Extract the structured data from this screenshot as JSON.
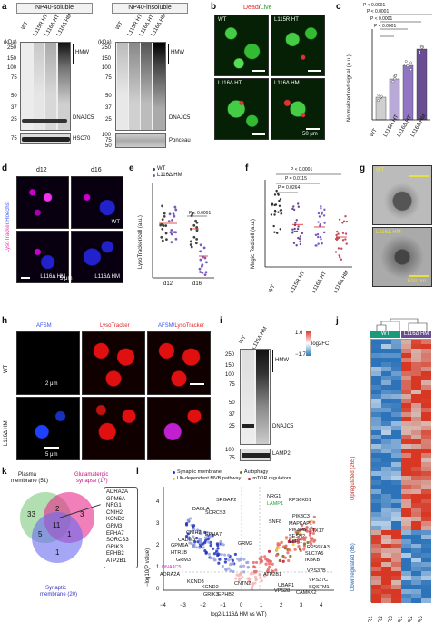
{
  "panels": {
    "a": "a",
    "b": "b",
    "c": "c",
    "d": "d",
    "e": "e",
    "f": "f",
    "g": "g",
    "h": "h",
    "i": "i",
    "j": "j",
    "k": "k",
    "l": "l"
  },
  "panel_a": {
    "soluble_header": "NP40-soluble",
    "insoluble_header": "NP40-insoluble",
    "lanes": [
      "WT",
      "L115R HT",
      "L116Δ HT",
      "L116Δ HM"
    ],
    "kda_label": "(kDa)",
    "markers_left": [
      "250",
      "150",
      "100",
      "75",
      "50",
      "37",
      "25",
      "75"
    ],
    "markers_right": [
      "250",
      "150",
      "100",
      "75",
      "50",
      "37",
      "25",
      "100",
      "75",
      "50"
    ],
    "hmw": "HMW",
    "dnajc5": "DNAJC5",
    "hsc70": "HSC70",
    "ponceau": "Ponceau"
  },
  "panel_b": {
    "title_dead": "Dead",
    "title_sep": "/",
    "title_live": "Live",
    "tiles": [
      "WT",
      "L115R HT",
      "L116Δ HT",
      "L116Δ HM"
    ],
    "scale": "50 μm"
  },
  "panel_c": {
    "ylabel": "Normalized red signal (a.u.)",
    "pvals": [
      "P < 0.0001",
      "P < 0.0001",
      "P < 0.0001",
      "P < 0.0001"
    ]
  },
  "panel_d": {
    "col_labels": [
      "d12",
      "d16"
    ],
    "side_label_a": "LysoTracker",
    "side_label_b": "/Hoechst",
    "tile_labels": [
      "WT",
      "WT",
      "L116Δ HM",
      "L116Δ HM"
    ],
    "scale": "5 μm"
  },
  "panel_e": {
    "legend": [
      "WT",
      "L116Δ HM"
    ],
    "ylabel": "LysoTracker/cell (a.u.)",
    "pval": "P < 0.0001",
    "x": [
      "d12",
      "d16"
    ]
  },
  "panel_f": {
    "ylabel": "Magic Red/cell (a.u.)",
    "pvals": [
      "P < 0.0001",
      "P = 0.0115",
      "P = 0.0264"
    ],
    "x": [
      "WT",
      "L115R HT",
      "L116Δ HT",
      "L116Δ HM"
    ]
  },
  "panel_g": {
    "labels": [
      "WT",
      "L116Δ HM"
    ],
    "scale": "500 nm"
  },
  "panel_h": {
    "cols": [
      "AFSM",
      "LysoTracker",
      "AFSM/",
      "LysoTracker"
    ],
    "rows": [
      "WT",
      "L116Δ HM"
    ],
    "scale1": "2 μm",
    "scale2": "5 μm"
  },
  "panel_i": {
    "lanes": [
      "WT",
      "L116Δ HM"
    ],
    "markers": [
      "250",
      "150",
      "100",
      "75",
      "50",
      "37",
      "25",
      "100",
      "75"
    ],
    "hmw": "HMW",
    "dnajc5": "DNAJC5",
    "lamp2": "LAMP2"
  },
  "panel_j": {
    "groups": [
      "WT",
      "L116Δ HM"
    ],
    "up": "Upregulated (265)",
    "down": "Downregulated (86)",
    "cols": [
      "R1",
      "R2",
      "R3",
      "R1",
      "R2",
      "R3"
    ],
    "legend_title": "log2FC",
    "legend_max": "1.6",
    "legend_min": "−1.7"
  },
  "panel_k": {
    "set_plasma": "Plasma",
    "set_plasma2": "membrane (51)",
    "set_glut": "Glutamatergic",
    "set_glut2": "synapse (17)",
    "set_syn": "Synaptic",
    "set_syn2": "membrane (20)",
    "counts": [
      "33",
      "2",
      "3",
      "11",
      "5",
      "1",
      "1"
    ],
    "genes": [
      "ADRA2A",
      "GPM6A",
      "NRG1",
      "CNIH2",
      "KCND2",
      "GRM3",
      "EPHA7",
      "SORCS3",
      "GRIK3",
      "EPHB2",
      "ATP2B1"
    ]
  },
  "panel_l": {
    "legend": [
      "Synaptic membrane",
      "Autophagy",
      "Ub-dependent MVB pathway",
      "mTOR regulators"
    ],
    "xlabel": "log2(L116Δ HM vs WT)",
    "ylabel": "−log10(P value)",
    "xticks": [
      "−4",
      "−3",
      "−2",
      "−1",
      "0",
      "1",
      "2",
      "3",
      "4"
    ],
    "yticks": [
      "0",
      "1",
      "2",
      "3",
      "4"
    ],
    "genes_left": [
      "DAGLA",
      "SRGAP2",
      "SORCS3",
      "CNIH2",
      "CADM3",
      "EPHA7",
      "GPM6A",
      "HTR1B",
      "GRM3",
      "DNAJC5",
      "ADRA2A",
      "KCND3",
      "KCND2",
      "GRIK3",
      "EPHB2",
      "CNTN2",
      "GRM2"
    ],
    "genes_right": [
      "NRG1",
      "LAMP1",
      "RPS6KB1",
      "PIK3C3",
      "SNF8",
      "MAPKAP1",
      "PIK3R3",
      "SESN2",
      "WIPI1",
      "STX17",
      "RPS6KA3",
      "SLC7A5",
      "IKBKB",
      "VPS37B",
      "ATP2B1",
      "UBAP1",
      "VPS28",
      "CAMKK2",
      "VPS37C",
      "SQSTM1"
    ]
  },
  "colors": {
    "wt_bar": "#c8c0d8",
    "hm_bar": "#6a4c93",
    "dot_wt": "#444444",
    "dot_hm": "#7a5cc0",
    "heat_red": "#d7301f",
    "heat_blue": "#2c7bb6",
    "venn_green": "#7fc97f",
    "venn_pink": "#e7298a",
    "venn_blue": "#6a6af0"
  },
  "chart_data": [
    {
      "type": "bar",
      "panel": "c",
      "categories": [
        "WT",
        "L115R HT",
        "L116Δ HT",
        "L116Δ HM"
      ],
      "values": [
        25,
        45,
        60,
        78
      ],
      "ylim": [
        0,
        100
      ],
      "ylabel": "Normalized red signal (a.u.)"
    },
    {
      "type": "scatter",
      "panel": "e",
      "categories": [
        "d12",
        "d16"
      ],
      "series": [
        {
          "name": "WT",
          "values": [
            100,
            90
          ]
        },
        {
          "name": "L116Δ HM",
          "values": [
            100,
            40
          ]
        }
      ],
      "ylabel": "LysoTracker/cell (a.u.)"
    },
    {
      "type": "scatter",
      "panel": "f",
      "categories": [
        "WT",
        "L115R HT",
        "L116Δ HT",
        "L116Δ HM"
      ],
      "values": [
        110,
        85,
        80,
        60
      ],
      "ylabel": "Magic Red/cell (a.u.)"
    }
  ]
}
